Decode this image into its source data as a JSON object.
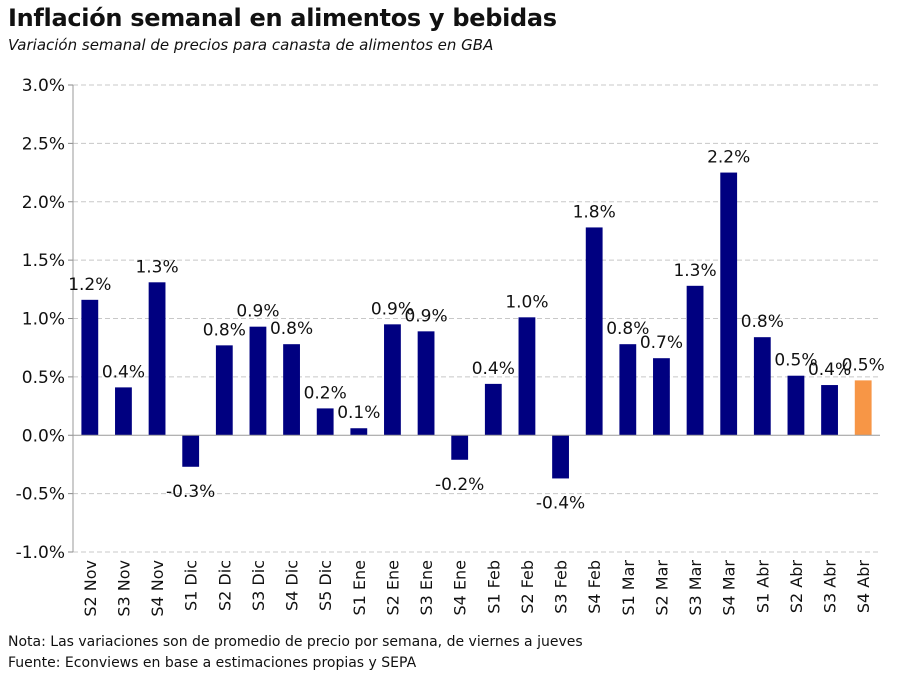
{
  "chart_data": {
    "type": "bar",
    "title": "Inflación semanal en alimentos y bebidas",
    "subtitle": "Variación semanal de precios para canasta de alimentos en GBA",
    "xlabel": "",
    "ylabel": "",
    "ylim": [
      -1.0,
      3.0
    ],
    "yticks": [
      "-1.0%",
      "-0.5%",
      "0.0%",
      "0.5%",
      "1.0%",
      "1.5%",
      "2.0%",
      "2.5%",
      "3.0%"
    ],
    "grid": true,
    "categories": [
      "S2 Nov",
      "S3 Nov",
      "S4 Nov",
      "S1 Dic",
      "S2 Dic",
      "S3 Dic",
      "S4 Dic",
      "S5 Dic",
      "S1 Ene",
      "S2 Ene",
      "S3 Ene",
      "S4 Ene",
      "S1 Feb",
      "S2 Feb",
      "S3 Feb",
      "S4 Feb",
      "S1 Mar",
      "S2 Mar",
      "S3 Mar",
      "S4 Mar",
      "S1 Abr",
      "S2 Abr",
      "S3 Abr",
      "S4 Abr"
    ],
    "values": [
      1.16,
      0.41,
      1.31,
      -0.27,
      0.77,
      0.93,
      0.78,
      0.23,
      0.06,
      0.95,
      0.89,
      -0.21,
      0.44,
      1.01,
      -0.37,
      1.78,
      0.78,
      0.66,
      1.28,
      2.25,
      0.84,
      0.51,
      0.43,
      0.47
    ],
    "labels": [
      "1.2%",
      "0.4%",
      "1.3%",
      "-0.3%",
      "0.8%",
      "0.9%",
      "0.8%",
      "0.2%",
      "0.1%",
      "0.9%",
      "0.9%",
      "-0.2%",
      "0.4%",
      "1.0%",
      "-0.4%",
      "1.8%",
      "0.8%",
      "0.7%",
      "1.3%",
      "2.2%",
      "0.8%",
      "0.5%",
      "0.4%",
      "0.5%"
    ],
    "colors": [
      "#000080",
      "#000080",
      "#000080",
      "#000080",
      "#000080",
      "#000080",
      "#000080",
      "#000080",
      "#000080",
      "#000080",
      "#000080",
      "#000080",
      "#000080",
      "#000080",
      "#000080",
      "#000080",
      "#000080",
      "#000080",
      "#000080",
      "#000080",
      "#000080",
      "#000080",
      "#000080",
      "#F79646"
    ]
  },
  "footer": {
    "note": "Nota: Las variaciones son de promedio de precio por semana, de viernes a jueves",
    "source": "Fuente: Econviews en base a estimaciones propias y SEPA"
  }
}
